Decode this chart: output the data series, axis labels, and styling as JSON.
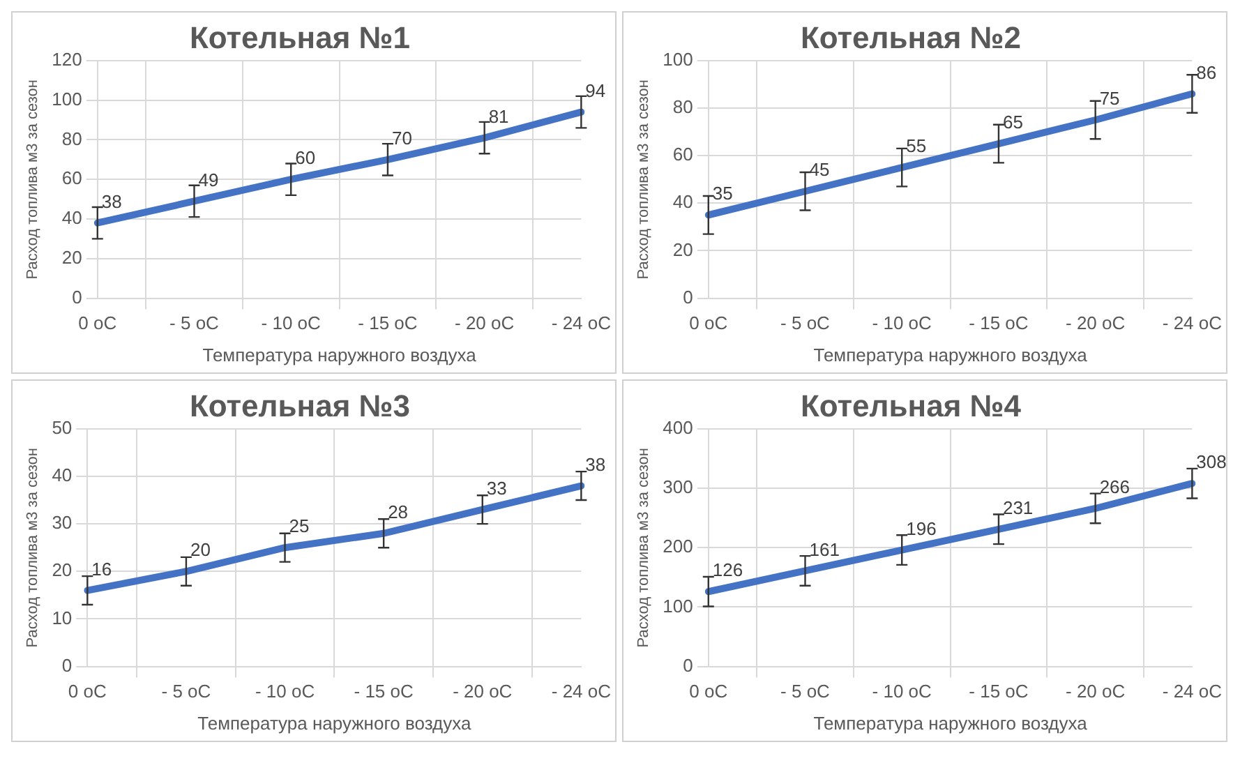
{
  "chart_data": [
    {
      "type": "line",
      "title": "Котельная №1",
      "xlabel": "Температура наружного воздуха",
      "ylabel": "Расход топлива м3 за сезон",
      "categories": [
        "0 oC",
        "- 5 oC",
        "- 10 oC",
        "- 15 oC",
        "- 20 oC",
        "- 24 oC"
      ],
      "series": [
        {
          "color": "#4472c4",
          "values": [
            38,
            49,
            60,
            70,
            81,
            94
          ],
          "errors": [
            8,
            8,
            8,
            8,
            8,
            8
          ]
        }
      ],
      "ylim": [
        0,
        120
      ],
      "yticks": [
        0,
        20,
        40,
        60,
        80,
        100,
        120
      ],
      "grid": true,
      "data_labels": true,
      "marker": "none",
      "legend": false
    },
    {
      "type": "line",
      "title": "Котельная №2",
      "xlabel": "Температура наружного воздуха",
      "ylabel": "Расход топлива м3 за сезон",
      "categories": [
        "0 oC",
        "- 5 oC",
        "- 10 oC",
        "- 15 oC",
        "- 20 oC",
        "- 24 oC"
      ],
      "series": [
        {
          "color": "#4472c4",
          "values": [
            35,
            45,
            55,
            65,
            75,
            86
          ],
          "errors": [
            8,
            8,
            8,
            8,
            8,
            8
          ]
        }
      ],
      "ylim": [
        0,
        100
      ],
      "yticks": [
        0,
        20,
        40,
        60,
        80,
        100
      ],
      "grid": true,
      "data_labels": true,
      "marker": "none",
      "legend": false
    },
    {
      "type": "line",
      "title": "Котельная №3",
      "xlabel": "Температура наружного воздуха",
      "ylabel": "Расход топлива м3 за сезон",
      "categories": [
        "0 oC",
        "- 5 oC",
        "- 10 oC",
        "- 15 oC",
        "- 20 oC",
        "- 24 oC"
      ],
      "series": [
        {
          "color": "#4472c4",
          "values": [
            16,
            20,
            25,
            28,
            33,
            38
          ],
          "errors": [
            3,
            3,
            3,
            3,
            3,
            3
          ]
        }
      ],
      "ylim": [
        0,
        50
      ],
      "yticks": [
        0,
        10,
        20,
        30,
        40,
        50
      ],
      "grid": true,
      "data_labels": true,
      "marker": "none",
      "legend": false
    },
    {
      "type": "line",
      "title": "Котельная №4",
      "xlabel": "Температура наружного воздуха",
      "ylabel": "Расход топлива м3 за сезон",
      "categories": [
        "0 oC",
        "- 5 oC",
        "- 10 oC",
        "- 15 oC",
        "- 20 oC",
        "- 24 oC"
      ],
      "series": [
        {
          "color": "#4472c4",
          "values": [
            126,
            161,
            196,
            231,
            266,
            308
          ],
          "errors": [
            25,
            25,
            25,
            25,
            25,
            25
          ]
        }
      ],
      "ylim": [
        0,
        400
      ],
      "yticks": [
        0,
        100,
        200,
        300,
        400
      ],
      "grid": true,
      "data_labels": true,
      "marker": "none",
      "legend": false
    }
  ]
}
